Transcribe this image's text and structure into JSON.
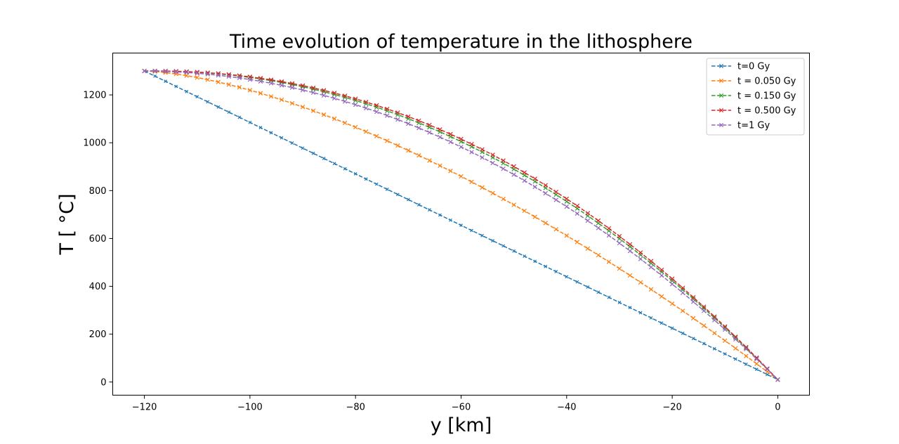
{
  "chart_data": {
    "type": "line",
    "title": "Time evolution of temperature in the lithosphere",
    "xlabel": "y [km]",
    "ylabel": "T [ °C]",
    "xlim": [
      -126,
      6
    ],
    "ylim": [
      -55,
      1375
    ],
    "xticks": [
      -120,
      -100,
      -80,
      -60,
      -40,
      -20,
      0
    ],
    "yticks": [
      0,
      200,
      400,
      600,
      800,
      1000,
      1200
    ],
    "grid": false,
    "legend_position": "top-right",
    "series": [
      {
        "name": "t=0 Gy",
        "color": "#1f77b4",
        "profile": "linear",
        "marker": "x"
      },
      {
        "name": "t = 0.050 Gy",
        "color": "#ff7f0e",
        "profile": "t0.05",
        "marker": "x"
      },
      {
        "name": "t = 0.150 Gy",
        "color": "#2ca02c",
        "profile": "t0.15",
        "marker": "x"
      },
      {
        "name": "t = 0.500 Gy",
        "color": "#d62728",
        "profile": "t0.5",
        "marker": "x"
      },
      {
        "name": "t=1 Gy",
        "color": "#9467bd",
        "profile": "t1",
        "marker": "x"
      }
    ]
  }
}
